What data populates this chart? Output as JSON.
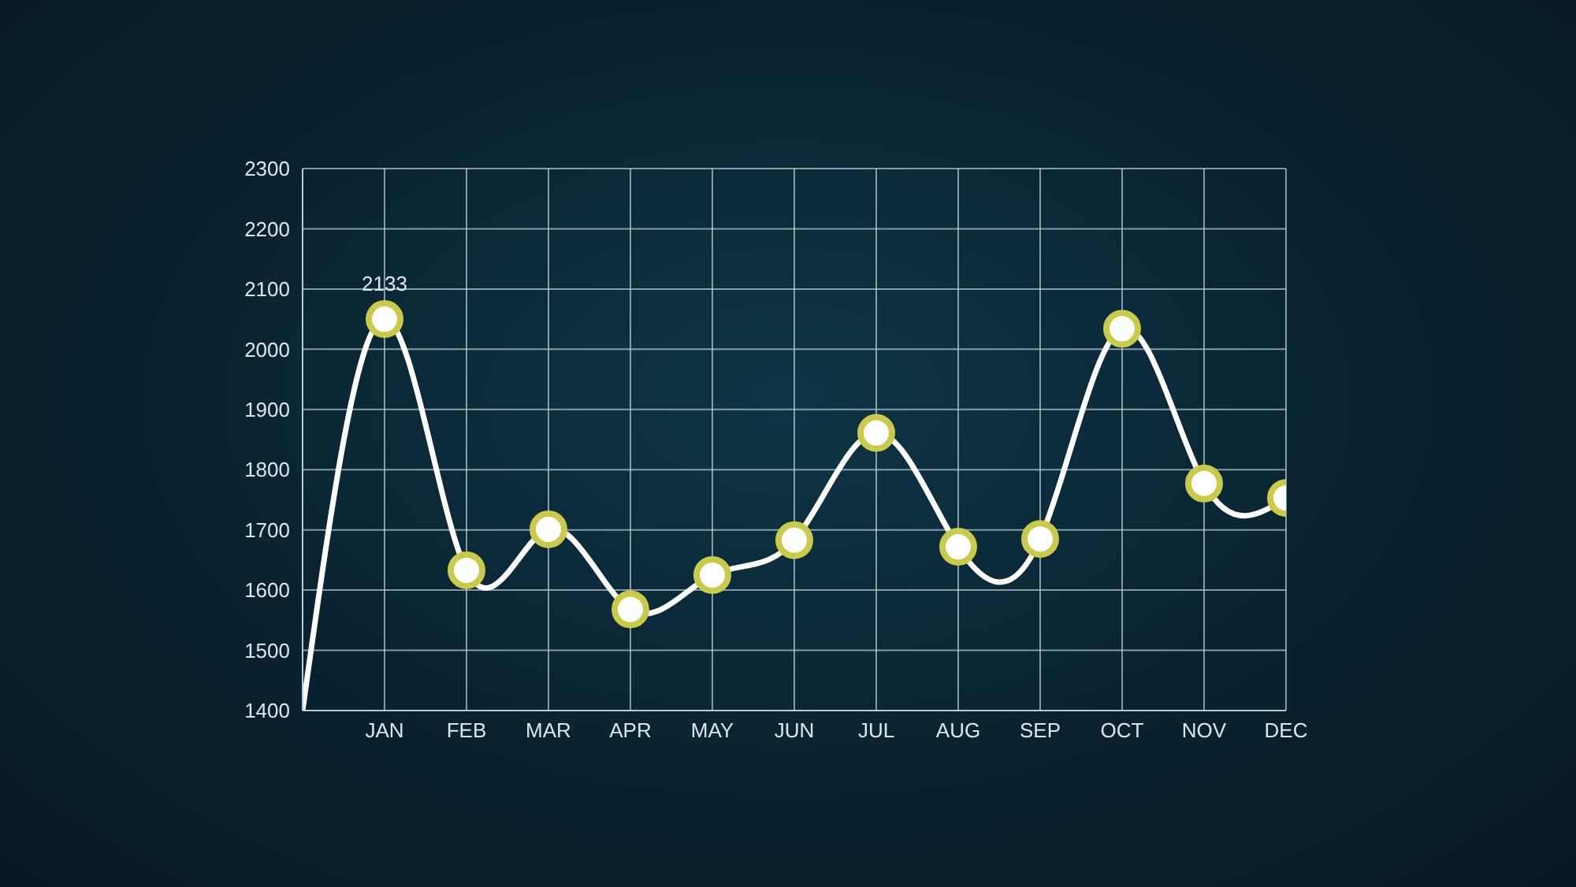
{
  "chart_data": {
    "type": "line",
    "categories": [
      null,
      "JAN",
      "FEB",
      "MAR",
      "APR",
      "MAY",
      "JUN",
      "JUL",
      "AUG",
      "SEP",
      "OCT",
      "NOV",
      "DEC"
    ],
    "series": [
      {
        "color": "#ffffff",
        "values": [
          1400,
          2050,
          1633,
          1701,
          1568,
          1625,
          1683,
          1861,
          1672,
          1685,
          2034,
          1777,
          1753
        ]
      }
    ],
    "ylim": [
      1400,
      2300
    ],
    "yticks": [
      1400,
      1500,
      1600,
      1700,
      1800,
      1900,
      2000,
      2100,
      2200,
      2300
    ],
    "grid": true,
    "marker": "circle",
    "annotations": [
      {
        "text": "2133",
        "x": "JAN",
        "y": 2050
      }
    ]
  }
}
